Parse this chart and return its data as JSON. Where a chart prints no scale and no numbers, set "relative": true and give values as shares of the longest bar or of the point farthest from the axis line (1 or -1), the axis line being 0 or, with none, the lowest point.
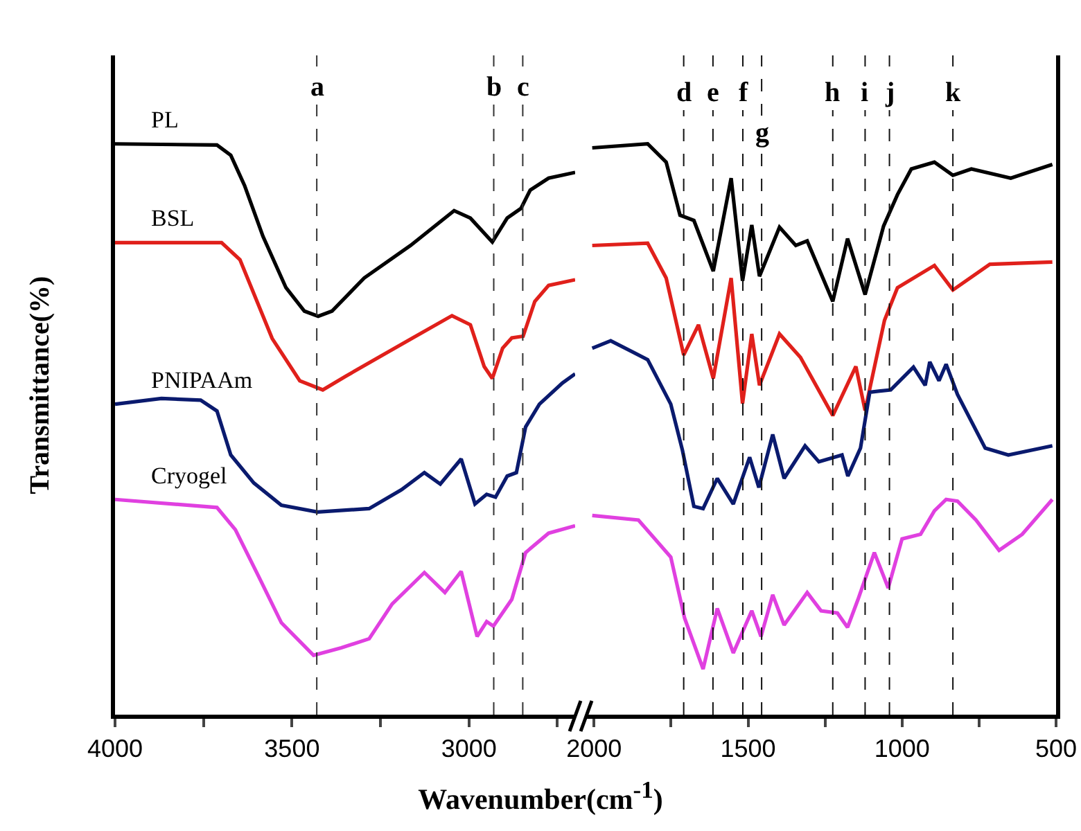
{
  "chart_data": [
    {
      "type": "line",
      "relative": true,
      "xlabel": "Wavenumber(cm$^{-1}$)",
      "ylabel": "Transmittance(%)",
      "xlim": [
        4000,
        2700
      ],
      "xticks": [
        4000,
        {
          "value": 3750,
          "label": null
        },
        3500,
        {
          "value": 3250,
          "label": null
        },
        3000,
        {
          "value": 2750,
          "label": null
        }
      ],
      "tick_labels": "x",
      "grid": false,
      "legend": false,
      "line_style": "solid",
      "series": [
        {
          "name": "PL",
          "color": "#000000",
          "x": [
            4000,
            3712,
            3673,
            3634,
            3582,
            3517,
            3465,
            3426,
            3387,
            3296,
            3165,
            3042,
            2996,
            2934,
            2892,
            2853,
            2827,
            2775,
            2700
          ],
          "values": [
            1.0,
            0.998,
            0.98,
            0.927,
            0.838,
            0.748,
            0.707,
            0.698,
            0.707,
            0.765,
            0.822,
            0.883,
            0.87,
            0.828,
            0.87,
            0.887,
            0.919,
            0.94,
            0.95
          ]
        },
        {
          "name": "BSL",
          "color": "#e0201b",
          "x": [
            4000,
            3699,
            3647,
            3556,
            3478,
            3413,
            3348,
            3165,
            3048,
            2996,
            2957,
            2934,
            2905,
            2879,
            2847,
            2814,
            2775,
            2700
          ],
          "values": [
            0.827,
            0.827,
            0.797,
            0.659,
            0.585,
            0.569,
            0.593,
            0.658,
            0.699,
            0.683,
            0.61,
            0.589,
            0.642,
            0.66,
            0.663,
            0.724,
            0.752,
            0.762
          ]
        },
        {
          "name": "PNIPAAm",
          "color": "#0a1a6e",
          "x": [
            4000,
            3869,
            3758,
            3712,
            3673,
            3608,
            3530,
            3428,
            3282,
            3191,
            3126,
            3081,
            3022,
            2983,
            2950,
            2925,
            2892,
            2866,
            2840,
            2801,
            2736,
            2700
          ],
          "values": [
            0.544,
            0.554,
            0.551,
            0.532,
            0.455,
            0.406,
            0.367,
            0.355,
            0.361,
            0.394,
            0.424,
            0.404,
            0.448,
            0.369,
            0.386,
            0.381,
            0.418,
            0.424,
            0.504,
            0.544,
            0.581,
            0.597
          ]
        },
        {
          "name": "Cryogel",
          "color": "#e040e0",
          "x": [
            4000,
            3712,
            3660,
            3595,
            3530,
            3439,
            3361,
            3282,
            3217,
            3126,
            3068,
            3022,
            2977,
            2950,
            2931,
            2879,
            2840,
            2775,
            2700
          ],
          "values": [
            0.377,
            0.363,
            0.324,
            0.243,
            0.161,
            0.104,
            0.117,
            0.133,
            0.194,
            0.249,
            0.214,
            0.251,
            0.137,
            0.163,
            0.155,
            0.202,
            0.284,
            0.318,
            0.331
          ]
        }
      ],
      "ref_lines": [
        {
          "axis": "x",
          "value": 3430,
          "color": "#333333",
          "line_style": "dashed"
        },
        {
          "axis": "x",
          "value": 2930,
          "color": "#333333",
          "line_style": "dashed"
        },
        {
          "axis": "x",
          "value": 2848,
          "color": "#333333",
          "line_style": "dashed"
        }
      ],
      "annotations": [
        {
          "text": "a",
          "x": 3430,
          "y": 1.1
        },
        {
          "text": "b",
          "x": 2930,
          "y": 1.1
        },
        {
          "text": "c",
          "x": 2848,
          "y": 1.1
        }
      ]
    },
    {
      "type": "line",
      "relative": true,
      "xlim": [
        2030,
        500
      ],
      "xticks": [
        2000,
        {
          "value": 1750,
          "label": null
        },
        1500,
        {
          "value": 1250,
          "label": null
        },
        1000,
        {
          "value": 750,
          "label": null
        },
        500
      ],
      "tick_labels": "x",
      "grid": false,
      "legend": false,
      "line_style": "solid",
      "series": [
        {
          "color": "#000000",
          "x": [
            2006,
            1826,
            1766,
            1721,
            1676,
            1613,
            1555,
            1518,
            1488,
            1463,
            1398,
            1345,
            1308,
            1225,
            1177,
            1120,
            1060,
            1015,
            970,
            895,
            835,
            775,
            647,
            512
          ],
          "values": [
            0.993,
            1.0,
            0.968,
            0.875,
            0.866,
            0.777,
            0.94,
            0.76,
            0.858,
            0.768,
            0.854,
            0.822,
            0.83,
            0.724,
            0.834,
            0.736,
            0.856,
            0.911,
            0.956,
            0.968,
            0.945,
            0.956,
            0.94,
            0.964
          ]
        },
        {
          "color": "#e0201b",
          "x": [
            2006,
            1826,
            1766,
            1709,
            1661,
            1613,
            1555,
            1518,
            1488,
            1463,
            1398,
            1330,
            1225,
            1150,
            1120,
            1057,
            1015,
            895,
            835,
            715,
            512
          ],
          "values": [
            0.822,
            0.826,
            0.765,
            0.63,
            0.683,
            0.589,
            0.765,
            0.545,
            0.667,
            0.577,
            0.667,
            0.626,
            0.524,
            0.61,
            0.533,
            0.691,
            0.748,
            0.787,
            0.744,
            0.789,
            0.793
          ]
        },
        {
          "color": "#0a1a6e",
          "x": [
            2006,
            1946,
            1826,
            1751,
            1713,
            1676,
            1646,
            1600,
            1548,
            1495,
            1465,
            1420,
            1383,
            1315,
            1270,
            1195,
            1176,
            1135,
            1105,
            1037,
            963,
            925,
            910,
            880,
            857,
            820,
            730,
            655,
            512
          ],
          "values": [
            0.642,
            0.655,
            0.622,
            0.544,
            0.463,
            0.365,
            0.361,
            0.414,
            0.369,
            0.451,
            0.398,
            0.491,
            0.414,
            0.471,
            0.443,
            0.455,
            0.418,
            0.467,
            0.565,
            0.569,
            0.609,
            0.577,
            0.618,
            0.585,
            0.614,
            0.561,
            0.467,
            0.455,
            0.471
          ]
        },
        {
          "color": "#e040e0",
          "x": [
            2006,
            1856,
            1751,
            1706,
            1646,
            1600,
            1548,
            1488,
            1458,
            1420,
            1383,
            1308,
            1263,
            1210,
            1177,
            1143,
            1090,
            1045,
            1000,
            940,
            895,
            857,
            820,
            760,
            685,
            610,
            512
          ],
          "values": [
            0.349,
            0.341,
            0.276,
            0.169,
            0.08,
            0.186,
            0.108,
            0.182,
            0.137,
            0.21,
            0.157,
            0.214,
            0.182,
            0.178,
            0.153,
            0.202,
            0.284,
            0.222,
            0.308,
            0.316,
            0.357,
            0.377,
            0.374,
            0.341,
            0.288,
            0.316,
            0.377
          ]
        }
      ],
      "ref_lines": [
        {
          "axis": "x",
          "value": 1709,
          "color": "#111111",
          "line_style": "dashed"
        },
        {
          "axis": "x",
          "value": 1614,
          "color": "#111111",
          "line_style": "dashed"
        },
        {
          "axis": "x",
          "value": 1517,
          "color": "#111111",
          "line_style": "dashed"
        },
        {
          "axis": "x",
          "value": 1456,
          "color": "#111111",
          "line_style": "dashed"
        },
        {
          "axis": "x",
          "value": 1225,
          "color": "#111111",
          "line_style": "dashed"
        },
        {
          "axis": "x",
          "value": 1120,
          "color": "#111111",
          "line_style": "dashed"
        },
        {
          "axis": "x",
          "value": 1041,
          "color": "#111111",
          "line_style": "dashed"
        },
        {
          "axis": "x",
          "value": 835,
          "color": "#111111",
          "line_style": "dashed"
        }
      ],
      "annotations": [
        {
          "text": "d",
          "x": 1709,
          "y": 1.09
        },
        {
          "text": "e",
          "x": 1614,
          "y": 1.09
        },
        {
          "text": "f",
          "x": 1517,
          "y": 1.09
        },
        {
          "text": "g",
          "x": 1456,
          "y": 1.02
        },
        {
          "text": "h",
          "x": 1225,
          "y": 1.09
        },
        {
          "text": "i",
          "x": 1120,
          "y": 1.09
        },
        {
          "text": "j",
          "x": 1041,
          "y": 1.09
        },
        {
          "text": "k",
          "x": 835,
          "y": 1.09
        }
      ]
    }
  ]
}
